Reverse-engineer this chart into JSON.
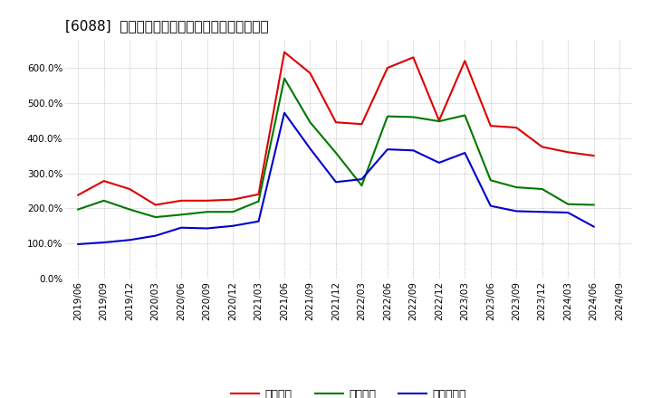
{
  "title": "[6088]  流動比率、当座比率、現預金比率の推移",
  "dates": [
    "2019/06",
    "2019/09",
    "2019/12",
    "2020/03",
    "2020/06",
    "2020/09",
    "2020/12",
    "2021/03",
    "2021/06",
    "2021/09",
    "2021/12",
    "2022/03",
    "2022/06",
    "2022/09",
    "2022/12",
    "2023/03",
    "2023/06",
    "2023/09",
    "2023/12",
    "2024/03",
    "2024/06",
    "2024/09"
  ],
  "ryudo": [
    2.38,
    2.78,
    2.55,
    2.1,
    2.22,
    2.22,
    2.25,
    2.4,
    6.45,
    5.85,
    4.45,
    4.4,
    6.0,
    6.3,
    4.5,
    6.2,
    4.35,
    4.3,
    3.75,
    3.6,
    3.5,
    null
  ],
  "toza": [
    1.97,
    2.22,
    1.97,
    1.75,
    1.82,
    1.9,
    1.9,
    2.2,
    5.7,
    4.45,
    3.58,
    2.65,
    4.62,
    4.6,
    4.48,
    4.65,
    2.8,
    2.6,
    2.55,
    2.12,
    2.1,
    null
  ],
  "genkin": [
    0.98,
    1.03,
    1.1,
    1.22,
    1.45,
    1.43,
    1.5,
    1.63,
    4.72,
    3.7,
    2.75,
    2.83,
    3.68,
    3.65,
    3.3,
    3.58,
    2.07,
    1.92,
    1.9,
    1.88,
    1.48,
    null
  ],
  "ryudo_color": "#dd0000",
  "toza_color": "#007700",
  "genkin_color": "#0000cc",
  "legend_labels": [
    "流動比率",
    "当座比率",
    "現預金比率"
  ],
  "ylim": [
    0.0,
    6.8
  ],
  "yticks": [
    0.0,
    1.0,
    2.0,
    3.0,
    4.0,
    5.0,
    6.0
  ],
  "background_color": "#ffffff",
  "plot_bg_color": "#ffffff",
  "grid_color": "#999999",
  "title_fontsize": 11,
  "axis_fontsize": 7.5,
  "legend_fontsize": 9
}
